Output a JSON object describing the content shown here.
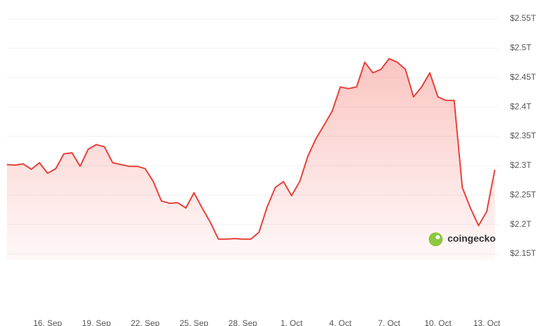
{
  "chart_data": {
    "type": "line",
    "watermark": "coingecko",
    "color": "#e8403a",
    "values": [
      2.302,
      2.301,
      2.303,
      2.294,
      2.305,
      2.287,
      2.295,
      2.32,
      2.322,
      2.299,
      2.328,
      2.336,
      2.332,
      2.305,
      2.302,
      2.299,
      2.299,
      2.295,
      2.273,
      2.24,
      2.236,
      2.237,
      2.228,
      2.254,
      2.228,
      2.204,
      2.175,
      2.175,
      2.176,
      2.175,
      2.175,
      2.187,
      2.23,
      2.263,
      2.273,
      2.249,
      2.273,
      2.316,
      2.346,
      2.369,
      2.393,
      2.434,
      2.431,
      2.434,
      2.476,
      2.458,
      2.464,
      2.482,
      2.476,
      2.464,
      2.417,
      2.434,
      2.458,
      2.417,
      2.411,
      2.411,
      2.263,
      2.228,
      2.198,
      2.222,
      2.293
    ],
    "xlim": [
      0,
      60.5
    ],
    "xticks": [
      {
        "value": 5,
        "label": "16. Sep"
      },
      {
        "value": 11,
        "label": "19. Sep"
      },
      {
        "value": 17,
        "label": "22. Sep"
      },
      {
        "value": 23,
        "label": "25. Sep"
      },
      {
        "value": 29,
        "label": "28. Sep"
      },
      {
        "value": 35,
        "label": "1. Oct"
      },
      {
        "value": 41,
        "label": "4. Oct"
      },
      {
        "value": 47,
        "label": "7. Oct"
      },
      {
        "value": 53,
        "label": "10. Oct"
      },
      {
        "value": 59,
        "label": "13. Oct"
      }
    ],
    "ylim": [
      2.14,
      2.56
    ],
    "yticks": [
      {
        "value": 2.15,
        "label": "$2.15T"
      },
      {
        "value": 2.2,
        "label": "$2.2T"
      },
      {
        "value": 2.25,
        "label": "$2.25T"
      },
      {
        "value": 2.3,
        "label": "$2.3T"
      },
      {
        "value": 2.35,
        "label": "$2.35T"
      },
      {
        "value": 2.4,
        "label": "$2.4T"
      },
      {
        "value": 2.45,
        "label": "$2.45T"
      },
      {
        "value": 2.5,
        "label": "$2.5T"
      },
      {
        "value": 2.55,
        "label": "$2.55T"
      }
    ],
    "grid": true
  }
}
